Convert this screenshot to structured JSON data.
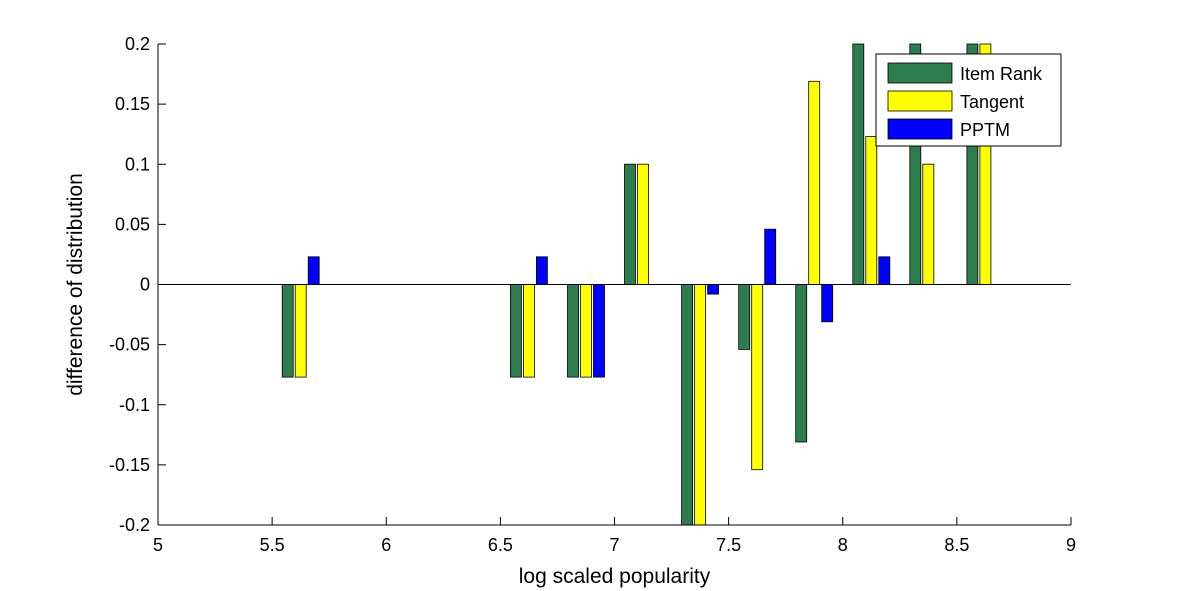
{
  "chart_data": {
    "type": "bar",
    "xlabel": "log scaled popularity",
    "ylabel": "difference of distribution",
    "xlim": [
      5,
      9
    ],
    "ylim": [
      -0.2,
      0.2
    ],
    "xticks": [
      5,
      5.5,
      6,
      6.5,
      7,
      7.5,
      8,
      8.5,
      9
    ],
    "xtick_labels": [
      "5",
      "5.5",
      "6",
      "6.5",
      "7",
      "7.5",
      "8",
      "8.5",
      "9"
    ],
    "yticks": [
      -0.2,
      -0.15,
      -0.1,
      -0.05,
      0,
      0.05,
      0.1,
      0.15,
      0.2
    ],
    "ytick_labels": [
      "-0.2",
      "-0.15",
      "-0.1",
      "-0.05",
      "0",
      "0.05",
      "0.1",
      "0.15",
      "0.2"
    ],
    "grid": false,
    "legend_position": "top-right",
    "x": [
      5.625,
      6.625,
      6.875,
      7.125,
      7.375,
      7.625,
      7.875,
      8.125,
      8.375,
      8.625
    ],
    "series": [
      {
        "name": "Item Rank",
        "color": "#2e7d4f",
        "values": [
          -0.077,
          -0.077,
          -0.077,
          0.1,
          -0.2,
          -0.054,
          -0.131,
          0.2,
          0.2,
          0.2
        ]
      },
      {
        "name": "Tangent",
        "color": "#ffff00",
        "values": [
          -0.077,
          -0.077,
          -0.077,
          0.1,
          -0.2,
          -0.154,
          0.169,
          0.123,
          0.1,
          0.2
        ]
      },
      {
        "name": "PPTM",
        "color": "#0000ff",
        "values": [
          0.023,
          0.023,
          -0.077,
          0,
          -0.008,
          0.046,
          -0.031,
          0.023,
          0,
          0
        ]
      }
    ]
  }
}
